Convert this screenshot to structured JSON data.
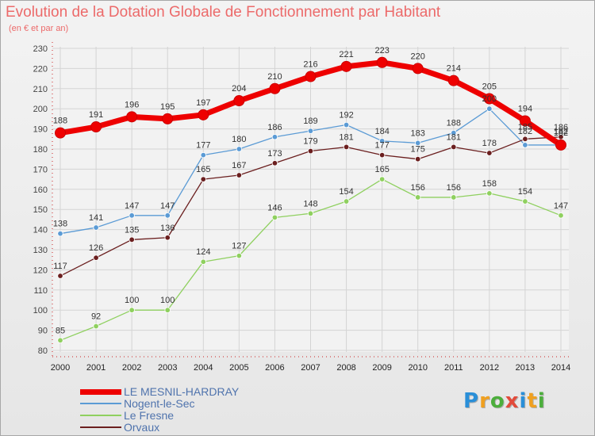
{
  "chart_data": {
    "type": "line",
    "title": "Evolution de la Dotation Globale de Fonctionnement par Habitant",
    "subtitle": "(en € et par an)",
    "xlabel": "",
    "ylabel": "",
    "x": [
      "2000",
      "2001",
      "2002",
      "2003",
      "2004",
      "2005",
      "2006",
      "2007",
      "2008",
      "2009",
      "2010",
      "2011",
      "2012",
      "2013",
      "2014"
    ],
    "y_ticks": [
      "80",
      "90",
      "100",
      "110",
      "120",
      "130",
      "140",
      "150",
      "160",
      "170",
      "180",
      "190",
      "200",
      "210",
      "220",
      "230"
    ],
    "ylim": [
      80,
      230
    ],
    "grid": true,
    "legend_position": "bottom-left",
    "series": [
      {
        "name": "LE MESNIL-HARDRAY",
        "color": "#ee0000",
        "values": [
          188,
          191,
          196,
          195,
          197,
          204,
          210,
          216,
          221,
          223,
          220,
          214,
          205,
          194,
          182
        ],
        "labels": [
          "188",
          "191",
          "196",
          "195",
          "197",
          "204",
          "210",
          "216",
          "221",
          "223",
          "220",
          "214",
          "205",
          "194",
          "182"
        ]
      },
      {
        "name": "Nogent-le-Sec",
        "color": "#5b9bd5",
        "values": [
          138,
          141,
          147,
          147,
          177,
          180,
          186,
          189,
          192,
          184,
          183,
          188,
          200,
          182,
          182
        ],
        "labels": [
          "138",
          "141",
          "147",
          "147",
          "177",
          "180",
          "186",
          "189",
          "192",
          "184",
          "183",
          "188",
          "200",
          "182",
          "182"
        ]
      },
      {
        "name": "Le Fresne",
        "color": "#8fd05f",
        "values": [
          85,
          92,
          100,
          100,
          124,
          127,
          146,
          148,
          154,
          165,
          156,
          156,
          158,
          154,
          147
        ],
        "labels": [
          "85",
          "92",
          "100",
          "100",
          "124",
          "127",
          "146",
          "148",
          "154",
          "165",
          "156",
          "156",
          "158",
          "154",
          "147"
        ]
      },
      {
        "name": "Orvaux",
        "color": "#6b1f1f",
        "values": [
          117,
          126,
          135,
          136,
          165,
          167,
          173,
          179,
          181,
          177,
          175,
          181,
          178,
          185,
          186
        ],
        "labels": [
          "117",
          "126",
          "135",
          "136",
          "165",
          "167",
          "173",
          "179",
          "181",
          "177",
          "175",
          "181",
          "178",
          "185",
          "186"
        ]
      }
    ]
  },
  "logo": {
    "letters": [
      "P",
      "r",
      "o",
      "x",
      "i",
      "t",
      "i"
    ],
    "colors": [
      "#2a8fd8",
      "#f0a020",
      "#4cae3c",
      "#e24b3b",
      "#2a8fd8",
      "#f0a020",
      "#4cae3c"
    ]
  }
}
